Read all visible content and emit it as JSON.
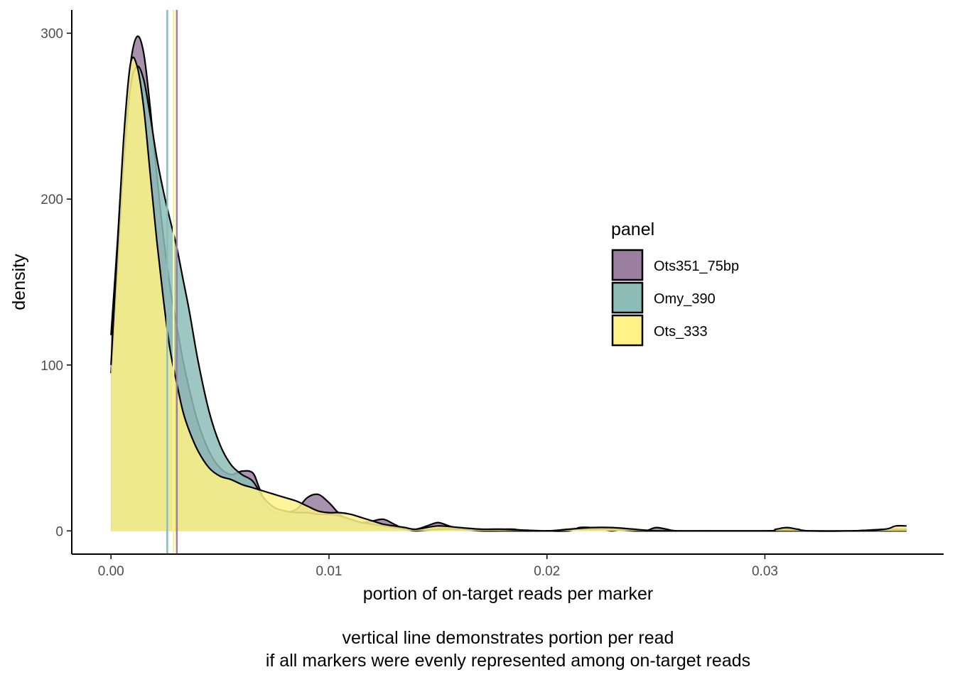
{
  "chart_data": {
    "type": "area",
    "subtype": "density",
    "xlabel": "portion of on-target reads per marker",
    "ylabel": "density",
    "caption_lines": [
      "vertical line demonstrates portion per read",
      "if all markers were evenly represented among on-target reads"
    ],
    "xlim": [
      -0.0018,
      0.0382
    ],
    "ylim": [
      -14,
      314
    ],
    "x_ticks": [
      0.0,
      0.01,
      0.02,
      0.03
    ],
    "x_tick_labels": [
      "0.00",
      "0.01",
      "0.02",
      "0.03"
    ],
    "y_ticks": [
      0,
      100,
      200,
      300
    ],
    "y_tick_labels": [
      "0",
      "100",
      "200",
      "300"
    ],
    "grid": false,
    "legend": {
      "title": "panel",
      "placement": "right-inside"
    },
    "series": [
      {
        "name": "Ots351_75bp",
        "color": "#9a7fa0",
        "fill_opacity": 0.85,
        "vline": 0.00302,
        "x": [
          0.0,
          0.0003,
          0.0006,
          0.0009,
          0.0012,
          0.0015,
          0.0018,
          0.0021,
          0.0024,
          0.0027,
          0.003,
          0.0033,
          0.0036,
          0.004,
          0.0045,
          0.005,
          0.0055,
          0.006,
          0.0065,
          0.0068,
          0.0072,
          0.0078,
          0.0085,
          0.009,
          0.0095,
          0.01,
          0.0105,
          0.011,
          0.0115,
          0.012,
          0.0125,
          0.013,
          0.0135,
          0.014,
          0.0145,
          0.015,
          0.0155,
          0.016,
          0.0165,
          0.017,
          0.0175,
          0.018,
          0.0185,
          0.019,
          0.02,
          0.021,
          0.0215,
          0.022,
          0.0225,
          0.023,
          0.0235,
          0.024,
          0.0245,
          0.025,
          0.0255,
          0.026,
          0.028,
          0.03,
          0.0305,
          0.031,
          0.0315,
          0.032,
          0.034,
          0.0355,
          0.036,
          0.0365
        ],
        "y": [
          118,
          175,
          238,
          282,
          298,
          288,
          255,
          215,
          178,
          148,
          125,
          103,
          85,
          65,
          48,
          38,
          34,
          36,
          35,
          26,
          14,
          11,
          13,
          20,
          22,
          17,
          10,
          6,
          5,
          6,
          7,
          4,
          1,
          1,
          3,
          5,
          3,
          1,
          1,
          1,
          1,
          1,
          1,
          0,
          0,
          0,
          2,
          2,
          1,
          0,
          1,
          1,
          0,
          2,
          1,
          0,
          0,
          0,
          0,
          1,
          1,
          0,
          0,
          0,
          0,
          0
        ]
      },
      {
        "name": "Omy_390",
        "color": "#8dbcb7",
        "fill_opacity": 0.85,
        "vline": 0.00258,
        "x": [
          0.0,
          0.0003,
          0.0006,
          0.0009,
          0.0012,
          0.0015,
          0.0018,
          0.0021,
          0.0024,
          0.0027,
          0.003,
          0.0033,
          0.0036,
          0.004,
          0.0045,
          0.005,
          0.0055,
          0.006,
          0.0065,
          0.007,
          0.0075,
          0.008,
          0.0085,
          0.009,
          0.0095,
          0.01,
          0.0105,
          0.011,
          0.0115,
          0.012,
          0.0125,
          0.013,
          0.0135,
          0.014,
          0.015,
          0.016,
          0.017,
          0.018,
          0.02,
          0.021,
          0.022,
          0.023,
          0.024,
          0.025,
          0.026,
          0.03,
          0.031,
          0.032,
          0.034,
          0.0355,
          0.036,
          0.0365
        ],
        "y": [
          95,
          160,
          225,
          268,
          280,
          272,
          250,
          225,
          205,
          188,
          172,
          152,
          132,
          102,
          72,
          52,
          40,
          34,
          30,
          20,
          14,
          12,
          11,
          11,
          10,
          10,
          9,
          7,
          5,
          4,
          3,
          2,
          1,
          0,
          1,
          1,
          0,
          0,
          0,
          1,
          1,
          1,
          0,
          0,
          0,
          0,
          0,
          0,
          0,
          1,
          1,
          1
        ]
      },
      {
        "name": "Ots_333",
        "color": "#fff287",
        "fill_opacity": 0.85,
        "vline": 0.00287,
        "x": [
          0.0,
          0.0003,
          0.0006,
          0.0009,
          0.0012,
          0.0015,
          0.0018,
          0.0021,
          0.0024,
          0.0027,
          0.003,
          0.0033,
          0.0036,
          0.004,
          0.0045,
          0.005,
          0.0055,
          0.006,
          0.0065,
          0.007,
          0.0075,
          0.008,
          0.0085,
          0.009,
          0.0095,
          0.01,
          0.0105,
          0.011,
          0.0115,
          0.012,
          0.0125,
          0.013,
          0.0135,
          0.014,
          0.015,
          0.016,
          0.017,
          0.018,
          0.02,
          0.021,
          0.022,
          0.023,
          0.024,
          0.025,
          0.026,
          0.03,
          0.0305,
          0.031,
          0.0315,
          0.032,
          0.034,
          0.0355,
          0.036,
          0.0365
        ],
        "y": [
          100,
          172,
          240,
          282,
          280,
          255,
          215,
          175,
          140,
          110,
          90,
          72,
          60,
          48,
          38,
          33,
          31,
          28,
          26,
          24,
          22,
          20,
          18,
          15,
          12,
          11,
          11,
          10,
          8,
          6,
          4,
          3,
          2,
          1,
          3,
          2,
          1,
          1,
          0,
          1,
          2,
          2,
          1,
          0,
          0,
          0,
          1,
          2,
          1,
          0,
          0,
          1,
          3,
          3
        ]
      }
    ]
  }
}
